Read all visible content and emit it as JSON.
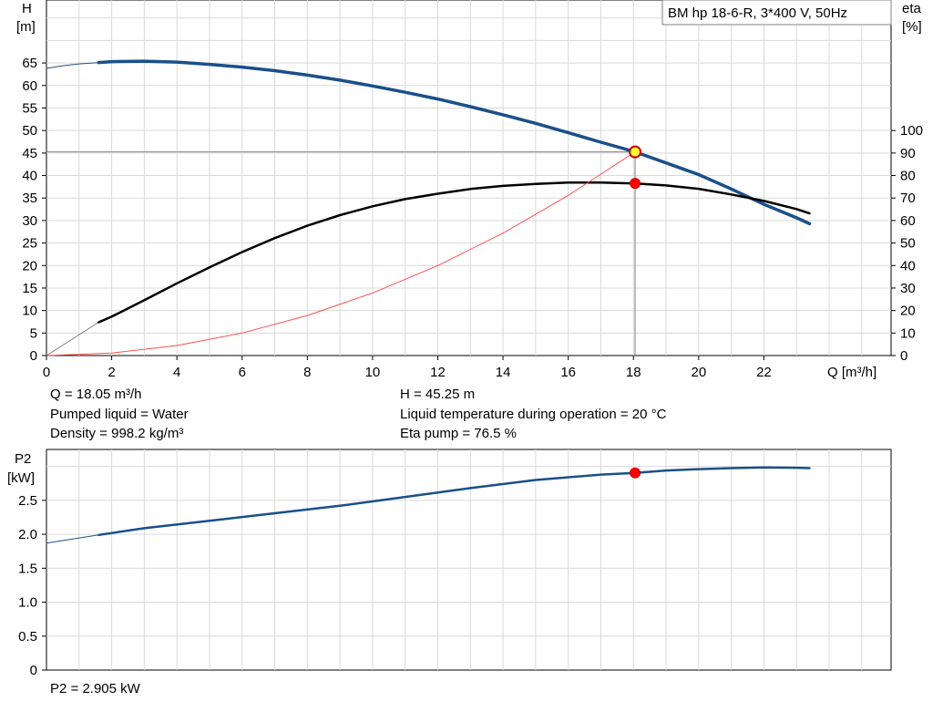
{
  "title_box": "BM hp  18-6-R, 3*400 V, 50Hz",
  "chart_data": [
    {
      "type": "line",
      "name": "head-efficiency",
      "y_axis_label": [
        "H",
        "[m]"
      ],
      "y2_axis_label": [
        "eta",
        "[%]"
      ],
      "x_axis_label": "Q [m³/h]",
      "xlim": [
        0,
        25.9
      ],
      "ylim": [
        0,
        79
      ],
      "y2lim": [
        0,
        158
      ],
      "x_ticks": [
        "0",
        "2",
        "4",
        "6",
        "8",
        "10",
        "12",
        "14",
        "16",
        "18",
        "20",
        "22"
      ],
      "y_ticks": [
        "0",
        "5",
        "10",
        "15",
        "20",
        "25",
        "30",
        "35",
        "40",
        "45",
        "50",
        "55",
        "60",
        "65"
      ],
      "y2_ticks": [
        "0",
        "10",
        "20",
        "30",
        "40",
        "50",
        "60",
        "70",
        "80",
        "90",
        "100"
      ],
      "grid": true,
      "series": [
        {
          "key": "head_ext",
          "color": "#1f4e8c",
          "x": [
            0,
            0.5,
            1.0,
            1.6
          ],
          "y": [
            63.8,
            64.4,
            64.8,
            65.1
          ]
        },
        {
          "key": "head",
          "color": "#1a4f8a",
          "x": [
            1.6,
            2,
            3,
            4,
            5,
            6,
            7,
            8,
            9,
            10,
            11,
            12,
            13,
            14,
            15,
            16,
            17,
            18.05,
            19,
            20,
            21,
            22,
            23,
            23.4
          ],
          "y": [
            65.1,
            65.3,
            65.4,
            65.2,
            64.7,
            64.1,
            63.3,
            62.3,
            61.2,
            59.9,
            58.5,
            57.0,
            55.3,
            53.5,
            51.6,
            49.5,
            47.4,
            45.25,
            42.8,
            40.2,
            37.0,
            33.6,
            30.6,
            29.3
          ]
        },
        {
          "key": "eta_ext",
          "color": "#808080",
          "x": [
            0,
            1.6
          ],
          "y2": [
            0,
            14.8
          ]
        },
        {
          "key": "eta",
          "color": "#000000",
          "x": [
            1.6,
            2,
            3,
            4,
            5,
            6,
            7,
            8,
            9,
            10,
            11,
            12,
            13,
            14,
            15,
            16,
            17,
            18.05,
            19,
            20,
            21,
            22,
            23,
            23.4
          ],
          "y2": [
            14.8,
            17.3,
            24.6,
            32.1,
            39.2,
            46.0,
            52.2,
            57.7,
            62.4,
            66.3,
            69.5,
            71.9,
            74.0,
            75.4,
            76.3,
            76.9,
            76.9,
            76.5,
            75.6,
            74.1,
            71.6,
            68.7,
            65.1,
            63.2
          ]
        },
        {
          "key": "system_curve",
          "color": "#ff5050",
          "x": [
            0,
            2,
            4,
            6,
            8,
            10,
            12,
            14,
            16,
            18.05
          ],
          "y": [
            0,
            0.56,
            2.22,
            5.0,
            8.89,
            13.9,
            20.0,
            27.2,
            35.6,
            45.25
          ]
        }
      ],
      "operating_point": {
        "q": 18.05,
        "h": 45.25,
        "eta": 76.5
      }
    },
    {
      "type": "line",
      "name": "power",
      "y_axis_label": [
        "P2",
        "[kW]"
      ],
      "xlim": [
        0,
        25.9
      ],
      "ylim": [
        0,
        3.25
      ],
      "y_ticks": [
        "0",
        "0.5",
        "1.0",
        "1.5",
        "2.0",
        "2.5"
      ],
      "grid": true,
      "series": [
        {
          "key": "p2_ext",
          "color": "#1f4e8c",
          "x": [
            0,
            1.6
          ],
          "y": [
            1.87,
            1.99
          ]
        },
        {
          "key": "p2",
          "color": "#1a4f8a",
          "x": [
            1.6,
            3,
            5,
            7,
            9,
            11,
            13,
            15,
            17,
            18.05,
            19,
            20,
            21,
            22,
            23,
            23.4
          ],
          "y": [
            1.99,
            2.09,
            2.2,
            2.31,
            2.42,
            2.55,
            2.68,
            2.8,
            2.88,
            2.905,
            2.94,
            2.96,
            2.975,
            2.985,
            2.98,
            2.975
          ]
        }
      ],
      "operating_point": {
        "q": 18.05,
        "p2": 2.905
      }
    }
  ],
  "info": {
    "q": "Q = 18.05 m³/h",
    "liquid": "Pumped liquid = Water",
    "density": "Density = 998.2 kg/m³",
    "h": "H = 45.25 m",
    "temp": "Liquid temperature during operation = 20 °C",
    "eta": "Eta pump = 76.5 %",
    "p2": "P2 = 2.905 kW"
  }
}
